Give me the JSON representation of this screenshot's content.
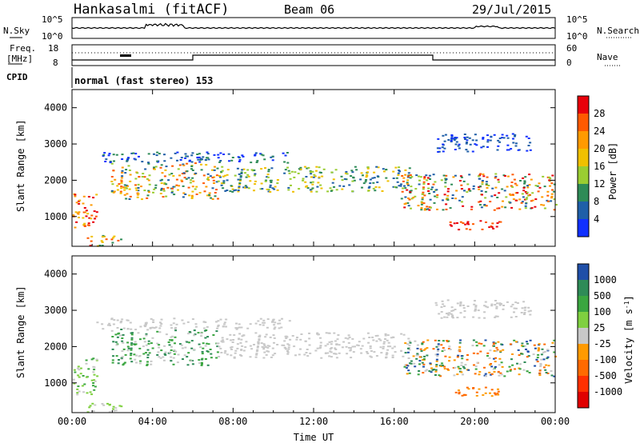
{
  "header": {
    "station": "Hankasalmi (fitACF)",
    "beam": "Beam 06",
    "date": "29/Jul/2015"
  },
  "noise_panel": {
    "left_label": "N.Sky",
    "right_label": "N.Search",
    "left_ticks": [
      "10^5",
      "10^0"
    ],
    "right_ticks": [
      "10^5",
      "10^0"
    ]
  },
  "freq_panel": {
    "left_label_line1": "Freq.",
    "left_label_line2": "[MHz]",
    "right_label": "Nave",
    "left_ticks": [
      "18",
      "8"
    ],
    "right_ticks": [
      "60",
      "0"
    ]
  },
  "cpid": {
    "label": "CPID",
    "text": "normal (fast stereo) 153"
  },
  "chart_data": [
    {
      "type": "heatmap",
      "title": "Power",
      "xlabel": "",
      "ylabel": "Slant Range [km]",
      "x_ticks": [
        "00:00",
        "04:00",
        "08:00",
        "12:00",
        "16:00",
        "20:00",
        "00:00"
      ],
      "y_ticks": [
        4000,
        3000,
        2000,
        1000
      ],
      "ylim": [
        180,
        4500
      ],
      "colorbar_label": "Power [dB]",
      "colorbar_ticks": [
        28,
        24,
        20,
        16,
        12,
        8,
        4
      ],
      "colorbar_colors": [
        "#e8000a",
        "#ff5a00",
        "#ff9a00",
        "#f0c000",
        "#9acd32",
        "#2e8b57",
        "#1f5fa8",
        "#1030ff"
      ]
    },
    {
      "type": "heatmap",
      "title": "Velocity",
      "xlabel": "Time UT",
      "ylabel": "Slant Range [km]",
      "x_ticks": [
        "00:00",
        "04:00",
        "08:00",
        "12:00",
        "16:00",
        "20:00",
        "00:00"
      ],
      "y_ticks": [
        4000,
        3000,
        2000,
        1000
      ],
      "ylim": [
        180,
        4500
      ],
      "colorbar_label": "Velocity [m s-1]",
      "colorbar_ticks": [
        1000,
        500,
        100,
        25,
        -25,
        -100,
        -500,
        -1000
      ],
      "colorbar_colors": [
        "#1f4fa8",
        "#2e8b57",
        "#3aa640",
        "#7fd040",
        "#c8c8c8",
        "#ff9a00",
        "#ff6a00",
        "#ff3000",
        "#e00000"
      ]
    }
  ],
  "colors": {
    "ground_scatter": "#c8c8c8",
    "axis": "#000000"
  }
}
